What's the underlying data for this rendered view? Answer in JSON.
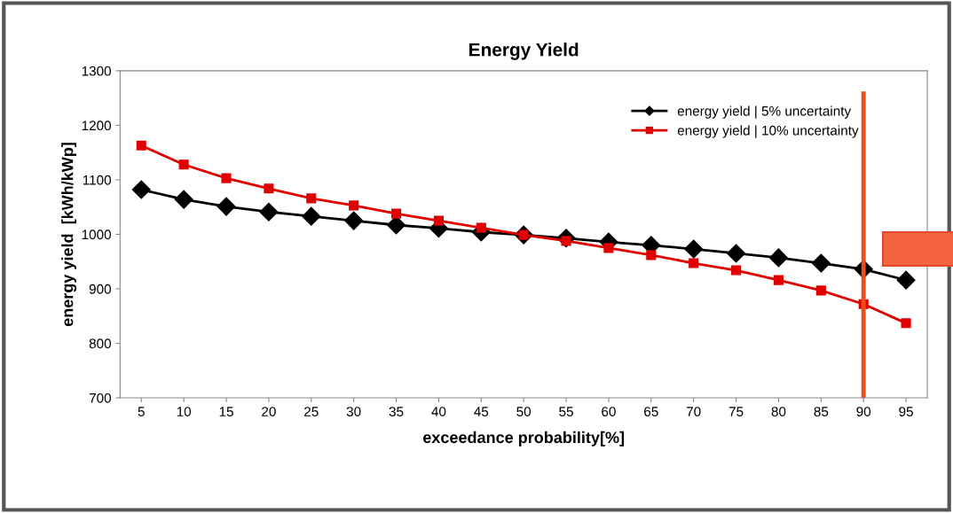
{
  "chart_data": {
    "type": "line",
    "title": "Energy Yield",
    "xlabel": "exceedance probability[%]",
    "ylabel": "energy yield  [kWh/kWp]",
    "categories": [
      "5",
      "10",
      "15",
      "20",
      "25",
      "30",
      "35",
      "40",
      "45",
      "50",
      "55",
      "60",
      "65",
      "70",
      "75",
      "80",
      "85",
      "90",
      "95"
    ],
    "series": [
      {
        "name": "energy yield | 5% uncertainty",
        "color": "#000000",
        "marker": "diamond",
        "values": [
          1082,
          1064,
          1051,
          1041,
          1033,
          1025,
          1017,
          1011,
          1004,
          999,
          993,
          986,
          980,
          973,
          965,
          957,
          947,
          936,
          916
        ]
      },
      {
        "name": "energy yield | 10% uncertainty",
        "color": "#e00000",
        "marker": "square",
        "values": [
          1163,
          1128,
          1103,
          1084,
          1066,
          1053,
          1038,
          1025,
          1012,
          999,
          988,
          975,
          962,
          947,
          934,
          916,
          897,
          872,
          837
        ]
      }
    ],
    "ylim": [
      700,
      1300
    ],
    "yticks": [
      700,
      800,
      900,
      1000,
      1100,
      1200,
      1300
    ],
    "grid": false,
    "legend": "top right",
    "ref_lines": [
      {
        "axis": "x",
        "value": "90",
        "label": null,
        "color": "#e8501a"
      }
    ]
  }
}
